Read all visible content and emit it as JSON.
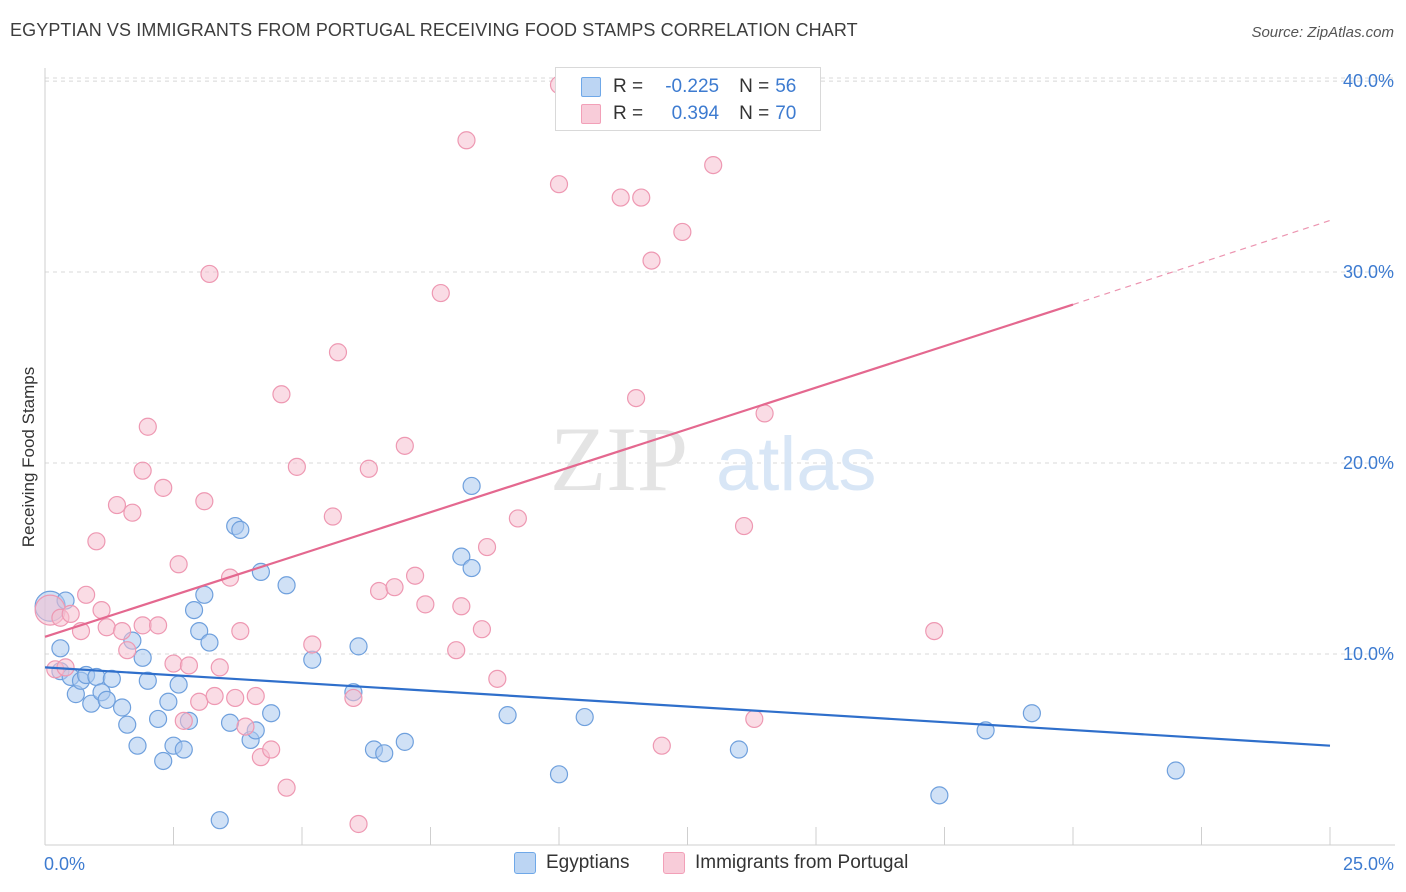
{
  "header": {
    "title": "EGYPTIAN VS IMMIGRANTS FROM PORTUGAL RECEIVING FOOD STAMPS CORRELATION CHART",
    "source": "Source: ZipAtlas.com"
  },
  "watermark": {
    "zip": "ZIP",
    "atlas": "atlas"
  },
  "legend": {
    "rows": [
      {
        "r_label": "R =",
        "r_value": "-0.225",
        "n_label": "N =",
        "n_value": "56",
        "color": "#6fa8e8",
        "fill": "#bcd5f3"
      },
      {
        "r_label": "R =",
        "r_value": "0.394",
        "n_label": "N =",
        "n_value": "70",
        "color": "#f2a0b8",
        "fill": "#f8ccd9"
      }
    ]
  },
  "bottom_legend": {
    "items": [
      "Egyptians",
      "Immigrants from Portugal"
    ]
  },
  "colors": {
    "blue_point": "#aac9ef",
    "blue_stroke": "#6fa0dd",
    "blue_line": "#2f6fcb",
    "pink_point": "#f6bfd0",
    "pink_stroke": "#ee98b2",
    "pink_line": "#e4688f",
    "tick_text": "#3d7bd0",
    "grid": "#d8d8d8"
  },
  "chart_data": {
    "type": "scatter",
    "title": "EGYPTIAN VS IMMIGRANTS FROM PORTUGAL RECEIVING FOOD STAMPS CORRELATION CHART",
    "xlabel": "",
    "ylabel": "Receiving Food Stamps",
    "xlim": [
      0,
      25
    ],
    "ylim": [
      0,
      40
    ],
    "x_tick_labels": [
      "0.0%",
      "25.0%"
    ],
    "y_ticks": [
      10,
      20,
      30,
      40
    ],
    "y_tick_labels": [
      "10.0%",
      "20.0%",
      "30.0%",
      "40.0%"
    ],
    "grid": true,
    "legend_placement": "top-center",
    "series": [
      {
        "name": "Egyptians",
        "points": [
          [
            0.1,
            12.5
          ],
          [
            0.3,
            10.3
          ],
          [
            0.4,
            12.8
          ],
          [
            0.3,
            9.1
          ],
          [
            0.5,
            8.8
          ],
          [
            0.6,
            7.9
          ],
          [
            0.7,
            8.6
          ],
          [
            0.8,
            8.9
          ],
          [
            0.9,
            7.4
          ],
          [
            1.0,
            8.8
          ],
          [
            1.1,
            8.0
          ],
          [
            1.2,
            7.6
          ],
          [
            1.3,
            8.7
          ],
          [
            1.5,
            7.2
          ],
          [
            1.6,
            6.3
          ],
          [
            1.7,
            10.7
          ],
          [
            1.8,
            5.2
          ],
          [
            1.9,
            9.8
          ],
          [
            2.0,
            8.6
          ],
          [
            2.2,
            6.6
          ],
          [
            2.3,
            4.4
          ],
          [
            2.4,
            7.5
          ],
          [
            2.5,
            5.2
          ],
          [
            2.6,
            8.4
          ],
          [
            2.7,
            5.0
          ],
          [
            2.8,
            6.5
          ],
          [
            2.9,
            12.3
          ],
          [
            3.0,
            11.2
          ],
          [
            3.1,
            13.1
          ],
          [
            3.2,
            10.6
          ],
          [
            3.4,
            1.3
          ],
          [
            3.6,
            6.4
          ],
          [
            3.7,
            16.7
          ],
          [
            3.8,
            16.5
          ],
          [
            4.0,
            5.5
          ],
          [
            4.1,
            6.0
          ],
          [
            4.2,
            14.3
          ],
          [
            4.4,
            6.9
          ],
          [
            4.7,
            13.6
          ],
          [
            5.2,
            9.7
          ],
          [
            6.0,
            8.0
          ],
          [
            6.1,
            10.4
          ],
          [
            6.4,
            5.0
          ],
          [
            6.6,
            4.8
          ],
          [
            7.0,
            5.4
          ],
          [
            8.1,
            15.1
          ],
          [
            8.3,
            14.5
          ],
          [
            8.3,
            18.8
          ],
          [
            9.0,
            6.8
          ],
          [
            10.0,
            3.7
          ],
          [
            10.5,
            6.7
          ],
          [
            13.5,
            5.0
          ],
          [
            17.4,
            2.6
          ],
          [
            18.3,
            6.0
          ],
          [
            19.2,
            6.9
          ],
          [
            22.0,
            3.9
          ]
        ],
        "trend": {
          "x": [
            0,
            25
          ],
          "y": [
            9.3,
            5.2
          ]
        }
      },
      {
        "name": "Immigrants from Portugal",
        "points": [
          [
            0.1,
            12.3
          ],
          [
            0.2,
            9.2
          ],
          [
            0.3,
            11.9
          ],
          [
            0.4,
            9.3
          ],
          [
            0.5,
            12.1
          ],
          [
            0.7,
            11.2
          ],
          [
            0.8,
            13.1
          ],
          [
            1.0,
            15.9
          ],
          [
            1.1,
            12.3
          ],
          [
            1.2,
            11.4
          ],
          [
            1.4,
            17.8
          ],
          [
            1.5,
            11.2
          ],
          [
            1.6,
            10.2
          ],
          [
            1.7,
            17.4
          ],
          [
            1.9,
            11.5
          ],
          [
            1.9,
            19.6
          ],
          [
            2.0,
            21.9
          ],
          [
            2.2,
            11.5
          ],
          [
            2.3,
            18.7
          ],
          [
            2.5,
            9.5
          ],
          [
            2.6,
            14.7
          ],
          [
            2.7,
            6.5
          ],
          [
            2.8,
            9.4
          ],
          [
            3.0,
            7.5
          ],
          [
            3.1,
            18.0
          ],
          [
            3.2,
            29.9
          ],
          [
            3.3,
            7.8
          ],
          [
            3.4,
            9.3
          ],
          [
            3.6,
            14.0
          ],
          [
            3.7,
            7.7
          ],
          [
            3.8,
            11.2
          ],
          [
            3.9,
            6.2
          ],
          [
            4.1,
            7.8
          ],
          [
            4.2,
            4.6
          ],
          [
            4.4,
            5.0
          ],
          [
            4.6,
            23.6
          ],
          [
            4.7,
            3.0
          ],
          [
            4.9,
            19.8
          ],
          [
            5.2,
            10.5
          ],
          [
            5.6,
            17.2
          ],
          [
            5.7,
            25.8
          ],
          [
            6.0,
            7.7
          ],
          [
            6.1,
            1.1
          ],
          [
            6.3,
            19.7
          ],
          [
            6.5,
            13.3
          ],
          [
            6.8,
            13.5
          ],
          [
            7.0,
            20.9
          ],
          [
            7.2,
            14.1
          ],
          [
            7.4,
            12.6
          ],
          [
            7.7,
            28.9
          ],
          [
            8.0,
            10.2
          ],
          [
            8.1,
            12.5
          ],
          [
            8.2,
            36.9
          ],
          [
            8.5,
            11.3
          ],
          [
            8.6,
            15.6
          ],
          [
            8.8,
            8.7
          ],
          [
            9.2,
            17.1
          ],
          [
            10.0,
            34.6
          ],
          [
            10.0,
            39.8
          ],
          [
            11.2,
            33.9
          ],
          [
            11.5,
            23.4
          ],
          [
            11.6,
            33.9
          ],
          [
            11.8,
            30.6
          ],
          [
            12.0,
            5.2
          ],
          [
            12.4,
            32.1
          ],
          [
            13.0,
            35.6
          ],
          [
            13.6,
            16.7
          ],
          [
            13.8,
            6.6
          ],
          [
            14.0,
            22.6
          ],
          [
            17.3,
            11.2
          ]
        ],
        "trend": {
          "x": [
            0,
            20
          ],
          "y": [
            10.9,
            28.3
          ]
        },
        "trend_dashed": {
          "x": [
            20,
            25
          ],
          "y": [
            28.3,
            32.7
          ]
        }
      }
    ]
  }
}
